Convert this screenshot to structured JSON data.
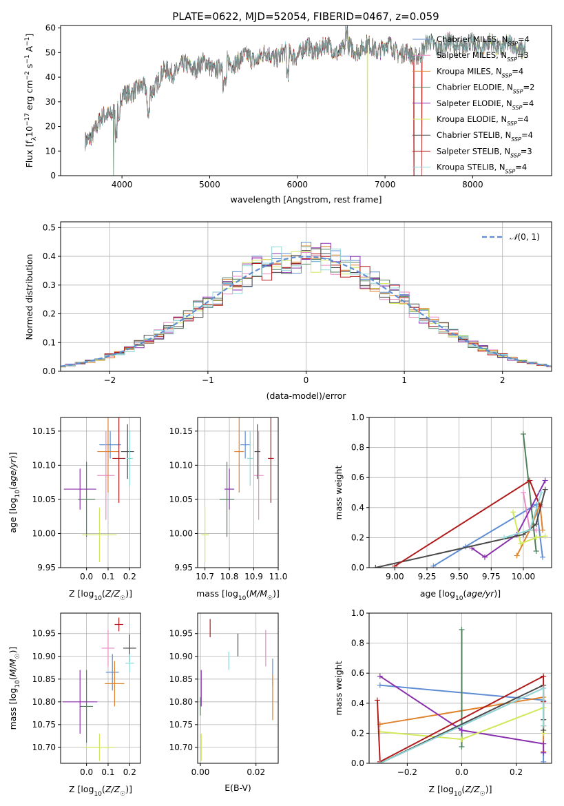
{
  "title": "PLATE=0622, MJD=52054, FIBERID=0467, z=0.059",
  "colors": {
    "Chabrier MILES": "#5f8dd3",
    "Salpeter MILES": "#e88cc5",
    "Kroupa MILES": "#e0822c",
    "Chabrier ELODIE": "#4f7f5a",
    "Salpeter ELODIE": "#8a2fae",
    "Kroupa ELODIE": "#d0e85a",
    "Chabrier STELIB": "#4a4a4a",
    "Salpeter STELIB": "#b01a1a",
    "Kroupa STELIB": "#8fd8d8"
  },
  "legend_entries": [
    {
      "label": "Chabrier MILES",
      "nssp": "4"
    },
    {
      "label": "Salpeter MILES",
      "nssp": "3"
    },
    {
      "label": "Kroupa MILES",
      "nssp": "4"
    },
    {
      "label": "Chabrier ELODIE",
      "nssp": "2"
    },
    {
      "label": "Salpeter ELODIE",
      "nssp": "4"
    },
    {
      "label": "Kroupa ELODIE",
      "nssp": "4"
    },
    {
      "label": "Chabrier STELIB",
      "nssp": "4"
    },
    {
      "label": "Salpeter STELIB",
      "nssp": "3"
    },
    {
      "label": "Kroupa STELIB",
      "nssp": "4"
    }
  ],
  "chart_data": [
    {
      "id": "spectrum",
      "type": "line",
      "xlabel": "wavelength [Angstrom, rest frame]",
      "ylabel": "Flux [f_λ 10^-17 erg cm^-2 s^-1 A^-1]",
      "xlim": [
        3300,
        8900
      ],
      "ylim": [
        0,
        61
      ],
      "xticks": [
        4000,
        5000,
        6000,
        7000,
        8000
      ],
      "yticks": [
        0,
        10,
        20,
        30,
        40,
        50,
        60
      ],
      "x_range_data": [
        3580,
        8600
      ],
      "spectrum_anchor_points": [
        [
          3580,
          13
        ],
        [
          3700,
          20
        ],
        [
          3850,
          25
        ],
        [
          4000,
          31
        ],
        [
          4150,
          36
        ],
        [
          4300,
          34
        ],
        [
          4500,
          42
        ],
        [
          4700,
          44
        ],
        [
          4900,
          45
        ],
        [
          5100,
          44
        ],
        [
          5300,
          47
        ],
        [
          5500,
          48
        ],
        [
          5700,
          49
        ],
        [
          5900,
          49
        ],
        [
          6100,
          51
        ],
        [
          6300,
          52
        ],
        [
          6500,
          51
        ],
        [
          6700,
          52
        ],
        [
          6900,
          52
        ],
        [
          7100,
          52
        ],
        [
          7300,
          48
        ],
        [
          7500,
          53
        ],
        [
          7700,
          53
        ],
        [
          8000,
          53
        ],
        [
          8300,
          53
        ],
        [
          8600,
          52
        ]
      ],
      "dropouts": [
        {
          "model": "Chabrier ELODIE",
          "x": 3905
        },
        {
          "model": "Kroupa ELODIE",
          "x": 6800
        },
        {
          "model": "Salpeter STELIB",
          "x": 7420
        },
        {
          "model": "Salpeter STELIB",
          "x": 7330
        }
      ]
    },
    {
      "id": "residuals",
      "type": "line",
      "xlabel": "(data-model)/error",
      "ylabel": "Normed distribution",
      "xlim": [
        -2.5,
        2.5
      ],
      "ylim": [
        0,
        0.52
      ],
      "xticks": [
        -2,
        -1,
        0,
        1,
        2
      ],
      "yticks": [
        0.0,
        0.1,
        0.2,
        0.3,
        0.4,
        0.5
      ],
      "legend": "N(0,1)",
      "bin_width": 0.1
    },
    {
      "id": "age_vs_Z",
      "type": "scatter",
      "xlabel": "Z [log10(Z/Z☉)]",
      "ylabel": "age  [log10(age/yr)]",
      "xlim": [
        -0.12,
        0.25
      ],
      "ylim": [
        9.95,
        10.17
      ],
      "xticks": [
        0.0,
        0.1,
        0.2
      ],
      "yticks": [
        9.95,
        10.0,
        10.05,
        10.1,
        10.15
      ],
      "points": [
        {
          "model": "Chabrier MILES",
          "x": 0.11,
          "y": 10.13,
          "xerr": 0.05,
          "yerr": 0.02
        },
        {
          "model": "Salpeter MILES",
          "x": 0.09,
          "y": 10.085,
          "xerr": 0.04,
          "yerr": 0.065
        },
        {
          "model": "Kroupa MILES",
          "x": 0.1,
          "y": 10.12,
          "xerr": 0.05,
          "yerr": 0.06
        },
        {
          "model": "Chabrier ELODIE",
          "x": 0.0,
          "y": 10.05,
          "xerr": 0.04,
          "yerr": 0.055
        },
        {
          "model": "Salpeter ELODIE",
          "x": -0.03,
          "y": 10.065,
          "xerr": 0.075,
          "yerr": 0.03
        },
        {
          "model": "Kroupa ELODIE",
          "x": 0.06,
          "y": 9.998,
          "xerr": 0.08,
          "yerr": 0.04
        },
        {
          "model": "Chabrier STELIB",
          "x": 0.19,
          "y": 10.12,
          "xerr": 0.03,
          "yerr": 0.04
        },
        {
          "model": "Salpeter STELIB",
          "x": 0.15,
          "y": 10.11,
          "xerr": 0.03,
          "yerr": 0.065
        },
        {
          "model": "Kroupa STELIB",
          "x": 0.2,
          "y": 10.11,
          "xerr": 0.015,
          "yerr": 0.04
        }
      ]
    },
    {
      "id": "age_vs_mass",
      "type": "scatter",
      "xlabel": "mass [log10(M/M☉)]",
      "xlim": [
        10.67,
        11.0
      ],
      "ylim": [
        9.95,
        10.17
      ],
      "xticks": [
        10.7,
        10.8,
        10.9,
        11.0
      ],
      "yticks": [
        9.95,
        10.0,
        10.05,
        10.1,
        10.15
      ],
      "points": [
        {
          "model": "Chabrier MILES",
          "x": 10.865,
          "y": 10.13,
          "xerr": 0.02,
          "yerr": 0.02
        },
        {
          "model": "Salpeter MILES",
          "x": 10.92,
          "y": 10.085,
          "xerr": 0.02,
          "yerr": 0.065
        },
        {
          "model": "Kroupa MILES",
          "x": 10.84,
          "y": 10.12,
          "xerr": 0.02,
          "yerr": 0.06
        },
        {
          "model": "Chabrier ELODIE",
          "x": 10.79,
          "y": 10.05,
          "xerr": 0.03,
          "yerr": 0.055
        },
        {
          "model": "Salpeter ELODIE",
          "x": 10.8,
          "y": 10.065,
          "xerr": 0.02,
          "yerr": 0.03
        },
        {
          "model": "Kroupa ELODIE",
          "x": 10.7,
          "y": 9.998,
          "xerr": 0.015,
          "yerr": 0.04
        },
        {
          "model": "Chabrier STELIB",
          "x": 10.915,
          "y": 10.12,
          "xerr": 0.012,
          "yerr": 0.04
        },
        {
          "model": "Salpeter STELIB",
          "x": 10.97,
          "y": 10.11,
          "xerr": 0.012,
          "yerr": 0.065
        },
        {
          "model": "Kroupa STELIB",
          "x": 10.885,
          "y": 10.11,
          "xerr": 0.012,
          "yerr": 0.04
        }
      ]
    },
    {
      "id": "weight_vs_age",
      "type": "line",
      "xlabel": "age  [log10(age/yr)]",
      "ylabel": "mass weight",
      "xlim": [
        8.8,
        10.22
      ],
      "ylim": [
        0,
        1.0
      ],
      "xticks": [
        9.0,
        9.25,
        9.5,
        9.75,
        10.0
      ],
      "yticks": [
        0.0,
        0.2,
        0.4,
        0.6,
        0.8,
        1.0
      ],
      "series": [
        {
          "model": "Chabrier MILES",
          "points": [
            [
              9.3,
              0.01
            ],
            [
              9.55,
              0.14
            ],
            [
              10.1,
              0.42
            ],
            [
              10.15,
              0.07
            ]
          ]
        },
        {
          "model": "Salpeter MILES",
          "points": [
            [
              10.0,
              0.5
            ],
            [
              10.05,
              0.25
            ],
            [
              10.1,
              0.25
            ]
          ]
        },
        {
          "model": "Kroupa MILES",
          "points": [
            [
              9.95,
              0.08
            ],
            [
              10.05,
              0.25
            ],
            [
              10.13,
              0.42
            ],
            [
              10.15,
              0.25
            ]
          ]
        },
        {
          "model": "Chabrier ELODIE",
          "points": [
            [
              10.0,
              0.89
            ],
            [
              10.1,
              0.11
            ]
          ]
        },
        {
          "model": "Salpeter ELODIE",
          "points": [
            [
              9.6,
              0.13
            ],
            [
              9.7,
              0.07
            ],
            [
              9.95,
              0.22
            ],
            [
              10.17,
              0.58
            ]
          ]
        },
        {
          "model": "Kroupa ELODIE",
          "points": [
            [
              9.92,
              0.37
            ],
            [
              9.98,
              0.16
            ],
            [
              10.1,
              0.2
            ],
            [
              10.17,
              0.21
            ]
          ]
        },
        {
          "model": "Chabrier STELIB",
          "points": [
            [
              8.85,
              0.0
            ],
            [
              10.0,
              0.22
            ],
            [
              10.1,
              0.29
            ],
            [
              10.17,
              0.52
            ]
          ]
        },
        {
          "model": "Salpeter STELIB",
          "points": [
            [
              9.0,
              0.01
            ],
            [
              10.05,
              0.58
            ],
            [
              10.13,
              0.41
            ]
          ]
        },
        {
          "model": "Kroupa STELIB",
          "points": [
            [
              9.85,
              0.2
            ],
            [
              10.05,
              0.25
            ],
            [
              10.14,
              0.5
            ]
          ]
        }
      ]
    },
    {
      "id": "mass_vs_Z",
      "type": "scatter",
      "xlabel": "Z [log10(Z/Z☉)]",
      "ylabel": "mass [log10(M/M☉)]",
      "xlim": [
        -0.12,
        0.25
      ],
      "ylim": [
        10.665,
        10.995
      ],
      "xticks": [
        0.0,
        0.1,
        0.2
      ],
      "yticks": [
        10.7,
        10.75,
        10.8,
        10.85,
        10.9,
        10.95
      ],
      "points": [
        {
          "model": "Chabrier MILES",
          "x": 0.12,
          "y": 10.865,
          "xerr": 0.03,
          "yerr": 0.04
        },
        {
          "model": "Salpeter MILES",
          "x": 0.1,
          "y": 10.918,
          "xerr": 0.03,
          "yerr": 0.04
        },
        {
          "model": "Kroupa MILES",
          "x": 0.13,
          "y": 10.84,
          "xerr": 0.045,
          "yerr": 0.05
        },
        {
          "model": "Chabrier ELODIE",
          "x": 0.0,
          "y": 10.79,
          "xerr": 0.03,
          "yerr": 0.08
        },
        {
          "model": "Salpeter ELODIE",
          "x": -0.03,
          "y": 10.8,
          "xerr": 0.08,
          "yerr": 0.07
        },
        {
          "model": "Kroupa ELODIE",
          "x": 0.06,
          "y": 10.7,
          "xerr": 0.07,
          "yerr": 0.03
        },
        {
          "model": "Chabrier STELIB",
          "x": 0.2,
          "y": 10.918,
          "xerr": 0.03,
          "yerr": 0.03
        },
        {
          "model": "Salpeter STELIB",
          "x": 0.15,
          "y": 10.97,
          "xerr": 0.02,
          "yerr": 0.015
        },
        {
          "model": "Kroupa STELIB",
          "x": 0.2,
          "y": 10.885,
          "xerr": 0.02,
          "yerr": 0.02
        }
      ]
    },
    {
      "id": "mass_vs_ebv",
      "type": "scatter",
      "xlabel": "E(B-V)",
      "xlim": [
        -0.001,
        0.028
      ],
      "ylim": [
        10.665,
        10.995
      ],
      "xticks": [
        0.0,
        0.02
      ],
      "yticks": [
        10.7,
        10.75,
        10.8,
        10.85,
        10.9,
        10.95
      ],
      "points": [
        {
          "model": "Chabrier MILES",
          "x": 0.026,
          "y": 10.865,
          "xerr": 0,
          "yerr": 0.03
        },
        {
          "model": "Salpeter MILES",
          "x": 0.0235,
          "y": 10.918,
          "xerr": 0,
          "yerr": 0.04
        },
        {
          "model": "Kroupa MILES",
          "x": 0.026,
          "y": 10.81,
          "xerr": 0,
          "yerr": 0.05
        },
        {
          "model": "Chabrier ELODIE",
          "x": 0.0,
          "y": 10.79,
          "xerr": 0,
          "yerr": 0.02
        },
        {
          "model": "Salpeter ELODIE",
          "x": 0.0003,
          "y": 10.83,
          "xerr": 0,
          "yerr": 0.04
        },
        {
          "model": "Kroupa ELODIE",
          "x": 0.0003,
          "y": 10.7,
          "xerr": 0,
          "yerr": 0.03
        },
        {
          "model": "Chabrier STELIB",
          "x": 0.0135,
          "y": 10.925,
          "xerr": 0,
          "yerr": 0.025
        },
        {
          "model": "Salpeter STELIB",
          "x": 0.0035,
          "y": 10.962,
          "xerr": 0,
          "yerr": 0.02
        },
        {
          "model": "Kroupa STELIB",
          "x": 0.0102,
          "y": 10.89,
          "xerr": 0,
          "yerr": 0.02
        }
      ]
    },
    {
      "id": "weight_vs_Z",
      "type": "line",
      "xlabel": "Z [log10(Z/Z☉)]",
      "ylabel": "mass weight",
      "xlim": [
        -0.34,
        0.33
      ],
      "ylim": [
        0,
        1.0
      ],
      "xticks": [
        -0.2,
        0.0,
        0.2
      ],
      "yticks": [
        0.0,
        0.2,
        0.4,
        0.6,
        0.8,
        1.0
      ],
      "series": [
        {
          "model": "Chabrier MILES",
          "points": [
            [
              -0.3,
              0.52
            ],
            [
              0.3,
              0.42
            ],
            [
              0.3,
              0.07
            ],
            [
              0.3,
              0.01
            ]
          ]
        },
        {
          "model": "Salpeter MILES",
          "points": [
            [
              -0.3,
              0.0
            ],
            [
              0.3,
              0.5
            ],
            [
              0.3,
              0.25
            ]
          ]
        },
        {
          "model": "Kroupa MILES",
          "points": [
            [
              -0.3,
              0.26
            ],
            [
              0.3,
              0.44
            ],
            [
              0.3,
              0.08
            ],
            [
              0.3,
              0.25
            ]
          ]
        },
        {
          "model": "Chabrier ELODIE",
          "points": [
            [
              0.0,
              0.89
            ],
            [
              0.0,
              0.11
            ]
          ]
        },
        {
          "model": "Salpeter ELODIE",
          "points": [
            [
              -0.3,
              0.58
            ],
            [
              0.0,
              0.22
            ],
            [
              0.3,
              0.13
            ],
            [
              0.3,
              0.07
            ]
          ]
        },
        {
          "model": "Kroupa ELODIE",
          "points": [
            [
              -0.3,
              0.21
            ],
            [
              0.0,
              0.16
            ],
            [
              0.3,
              0.37
            ],
            [
              0.3,
              0.2
            ]
          ]
        },
        {
          "model": "Chabrier STELIB",
          "points": [
            [
              -0.3,
              0.0
            ],
            [
              0.3,
              0.52
            ],
            [
              0.3,
              0.22
            ],
            [
              0.3,
              0.29
            ]
          ]
        },
        {
          "model": "Salpeter STELIB",
          "points": [
            [
              -0.31,
              0.42
            ],
            [
              -0.3,
              0.01
            ],
            [
              0.3,
              0.58
            ],
            [
              0.3,
              0.41
            ]
          ]
        },
        {
          "model": "Kroupa STELIB",
          "points": [
            [
              -0.3,
              0.0
            ],
            [
              0.3,
              0.5
            ],
            [
              0.3,
              0.25
            ]
          ]
        }
      ]
    }
  ]
}
